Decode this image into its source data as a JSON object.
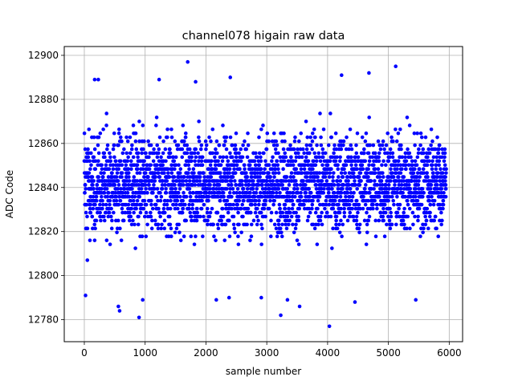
{
  "chart_data": {
    "type": "scatter",
    "title": "channel078 higain raw data",
    "xlabel": "sample number",
    "ylabel": "ADC Code",
    "xlim": [
      -330,
      6220
    ],
    "ylim": [
      12770,
      12904
    ],
    "x_ticks": [
      0,
      1000,
      2000,
      3000,
      4000,
      5000,
      6000
    ],
    "x_tick_labels": [
      "0",
      "1000",
      "2000",
      "3000",
      "4000",
      "5000",
      "6000"
    ],
    "y_ticks": [
      12780,
      12800,
      12820,
      12840,
      12860,
      12880,
      12900
    ],
    "y_tick_labels": [
      "12780",
      "12800",
      "12820",
      "12840",
      "12860",
      "12880",
      "12900"
    ],
    "grid": true,
    "marker_color": "#0000ff",
    "series": [
      {
        "x_range": [
          0,
          5950
        ],
        "n_points": 5950,
        "center": 12842,
        "typical_range": [
          12805,
          12878
        ],
        "outliers": [
          {
            "x": 20,
            "y": 12791
          },
          {
            "x": 170,
            "y": 12889
          },
          {
            "x": 230,
            "y": 12889
          },
          {
            "x": 560,
            "y": 12786
          },
          {
            "x": 580,
            "y": 12784
          },
          {
            "x": 900,
            "y": 12781
          },
          {
            "x": 960,
            "y": 12789
          },
          {
            "x": 1230,
            "y": 12889
          },
          {
            "x": 1700,
            "y": 12897
          },
          {
            "x": 1830,
            "y": 12888
          },
          {
            "x": 2170,
            "y": 12789
          },
          {
            "x": 2400,
            "y": 12890
          },
          {
            "x": 2380,
            "y": 12790
          },
          {
            "x": 2910,
            "y": 12790
          },
          {
            "x": 3230,
            "y": 12782
          },
          {
            "x": 3340,
            "y": 12789
          },
          {
            "x": 3540,
            "y": 12786
          },
          {
            "x": 4030,
            "y": 12777
          },
          {
            "x": 4230,
            "y": 12891
          },
          {
            "x": 4450,
            "y": 12788
          },
          {
            "x": 4680,
            "y": 12892
          },
          {
            "x": 5120,
            "y": 12895
          },
          {
            "x": 5450,
            "y": 12789
          }
        ]
      }
    ]
  }
}
